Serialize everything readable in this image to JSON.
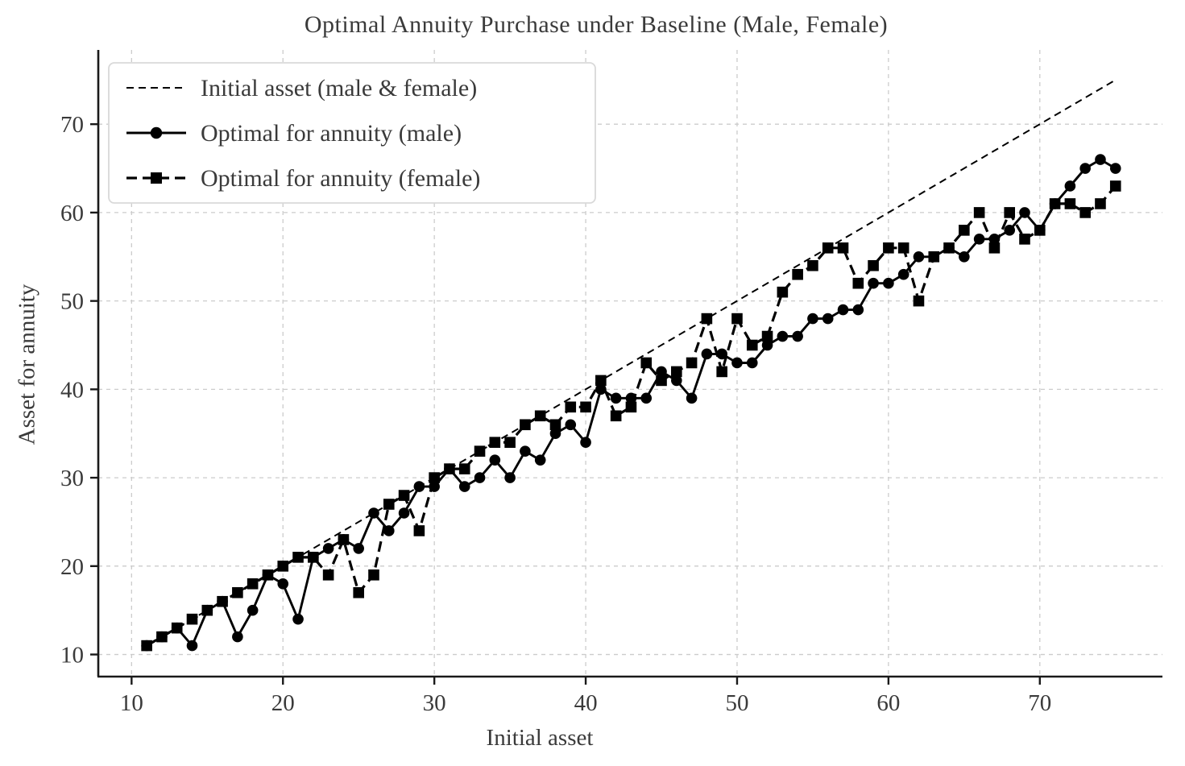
{
  "chart_data": {
    "type": "line",
    "title": "Optimal Annuity Purchase under Baseline (Male, Female)",
    "xlabel": "Initial asset",
    "ylabel": "Asset for annuity",
    "xlim": [
      7.8,
      78.1
    ],
    "ylim": [
      7.5,
      78.4
    ],
    "xticks": [
      10,
      20,
      30,
      40,
      50,
      60,
      70
    ],
    "yticks": [
      10,
      20,
      30,
      40,
      50,
      60,
      70
    ],
    "grid": true,
    "legend_position": "upper-left",
    "colors": {
      "line": "#000000",
      "text": "#3a3a3a",
      "grid": "#cccccc",
      "legend_border": "#d9d9d9"
    },
    "x_start": 11,
    "series": [
      {
        "name": "Initial asset (male & female)",
        "line": "dashed-thin",
        "marker": "none",
        "x": [
          11,
          75
        ],
        "values": [
          11,
          75
        ]
      },
      {
        "name": "Optimal for annuity (male)",
        "line": "solid",
        "marker": "circle",
        "values": [
          11,
          12,
          13,
          11,
          15,
          16,
          12,
          15,
          19,
          18,
          14,
          21,
          22,
          23,
          22,
          26,
          24,
          26,
          29,
          29,
          31,
          29,
          30,
          32,
          30,
          33,
          32,
          35,
          36,
          34,
          40,
          39,
          39,
          39,
          42,
          41,
          39,
          44,
          44,
          43,
          43,
          45,
          46,
          46,
          48,
          48,
          49,
          49,
          52,
          52,
          53,
          55,
          55,
          56,
          55,
          57,
          57,
          58,
          60,
          58,
          61,
          63,
          65,
          66,
          65
        ]
      },
      {
        "name": "Optimal for annuity (female)",
        "line": "dashed",
        "marker": "square",
        "values": [
          11,
          12,
          13,
          14,
          15,
          16,
          17,
          18,
          19,
          20,
          21,
          21,
          19,
          23,
          17,
          19,
          27,
          28,
          24,
          30,
          31,
          31,
          33,
          34,
          34,
          36,
          37,
          36,
          38,
          38,
          41,
          37,
          38,
          43,
          41,
          42,
          43,
          48,
          42,
          48,
          45,
          46,
          51,
          53,
          54,
          56,
          56,
          52,
          54,
          56,
          56,
          50,
          55,
          56,
          58,
          60,
          56,
          60,
          57,
          58,
          61,
          61,
          60,
          61,
          63
        ]
      }
    ]
  }
}
